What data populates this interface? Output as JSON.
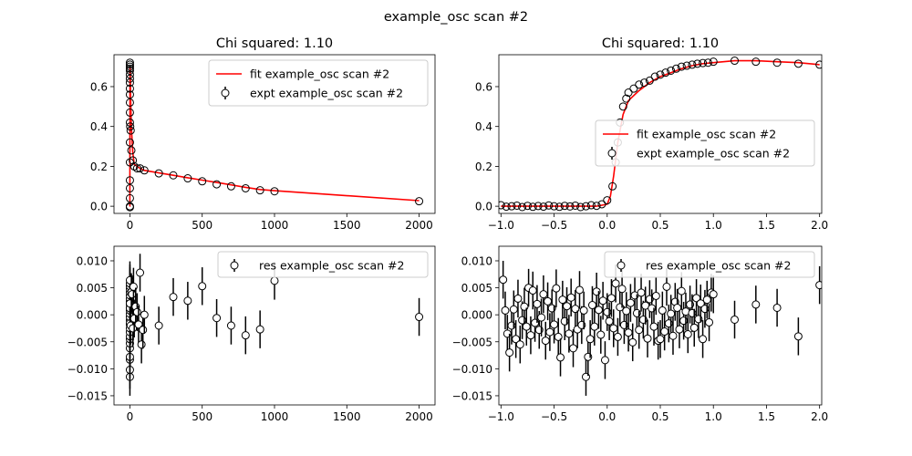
{
  "suptitle": "example_osc scan #2",
  "chart_data": [
    {
      "type": "line",
      "title": "Chi squared:  1.10",
      "xlim": [
        -110,
        2110
      ],
      "ylim": [
        -0.036,
        0.76
      ],
      "xticks": [
        0,
        500,
        1000,
        1500,
        2000
      ],
      "xtick_labels": [
        "0",
        "500",
        "1000",
        "1500",
        "2000"
      ],
      "yticks": [
        0.0,
        0.2,
        0.4,
        0.6
      ],
      "ytick_labels": [
        "0.0",
        "0.2",
        "0.4",
        "0.6"
      ],
      "legend": {
        "position": "upper right",
        "entries": [
          "fit example_osc scan #2",
          "expt example_osc scan #2"
        ]
      },
      "series": [
        {
          "name": "fit example_osc scan #2",
          "kind": "line",
          "color": "#ff0000",
          "x": [
            -1,
            0,
            0.3,
            1,
            2,
            5,
            10,
            20,
            30,
            50,
            70,
            100,
            200,
            300,
            400,
            500,
            600,
            700,
            800,
            900,
            1000,
            2000
          ],
          "y": [
            0.0,
            0.0,
            0.6,
            0.7,
            0.68,
            0.55,
            0.4,
            0.27,
            0.21,
            0.2,
            0.19,
            0.18,
            0.167,
            0.155,
            0.143,
            0.131,
            0.119,
            0.107,
            0.095,
            0.084,
            0.078,
            0.028
          ]
        },
        {
          "name": "expt example_osc scan #2",
          "kind": "scatter",
          "color": "#000000",
          "x": [
            0,
            0,
            0,
            0,
            0,
            0,
            0,
            0,
            0,
            0,
            0,
            0,
            0,
            0,
            0,
            0,
            0,
            0,
            0,
            0,
            2,
            5,
            10,
            20,
            30,
            50,
            70,
            100,
            200,
            300,
            400,
            500,
            600,
            700,
            800,
            900,
            1000,
            2000
          ],
          "y": [
            -0.005,
            0.0,
            0.04,
            0.09,
            0.13,
            0.22,
            0.32,
            0.42,
            0.47,
            0.52,
            0.56,
            0.59,
            0.62,
            0.64,
            0.66,
            0.68,
            0.69,
            0.7,
            0.71,
            0.72,
            0.4,
            0.38,
            0.28,
            0.23,
            0.2,
            0.19,
            0.19,
            0.18,
            0.165,
            0.155,
            0.14,
            0.125,
            0.11,
            0.1,
            0.09,
            0.08,
            0.075,
            0.025
          ]
        }
      ]
    },
    {
      "type": "line",
      "title": "Chi squared:  1.10",
      "xlim": [
        -1.02,
        2.02
      ],
      "ylim": [
        -0.036,
        0.76
      ],
      "xticks": [
        -1.0,
        -0.5,
        0.0,
        0.5,
        1.0,
        1.5,
        2.0
      ],
      "xtick_labels": [
        "−1.0",
        "−0.5",
        "0.0",
        "0.5",
        "1.0",
        "1.5",
        "2.0"
      ],
      "yticks": [
        0.0,
        0.2,
        0.4,
        0.6
      ],
      "ytick_labels": [
        "0.0",
        "0.2",
        "0.4",
        "0.6"
      ],
      "legend": {
        "position": "center right",
        "entries": [
          "fit example_osc scan #2",
          "expt example_osc scan #2"
        ]
      },
      "series": [
        {
          "name": "fit example_osc scan #2",
          "kind": "line",
          "color": "#ff0000",
          "x": [
            -1.0,
            -0.1,
            0.0,
            0.03,
            0.06,
            0.1,
            0.15,
            0.2,
            0.3,
            0.4,
            0.5,
            0.6,
            0.7,
            0.8,
            0.9,
            1.0,
            1.2,
            1.4,
            1.6,
            1.8,
            2.0
          ],
          "y": [
            0.0,
            0.0,
            0.01,
            0.05,
            0.15,
            0.32,
            0.46,
            0.53,
            0.58,
            0.62,
            0.65,
            0.67,
            0.69,
            0.705,
            0.715,
            0.72,
            0.73,
            0.73,
            0.725,
            0.72,
            0.71
          ]
        },
        {
          "name": "expt example_osc scan #2",
          "kind": "scatter",
          "color": "#000000",
          "x": [
            -1.0,
            -0.95,
            -0.9,
            -0.85,
            -0.8,
            -0.75,
            -0.7,
            -0.65,
            -0.6,
            -0.55,
            -0.5,
            -0.45,
            -0.4,
            -0.35,
            -0.3,
            -0.25,
            -0.2,
            -0.15,
            -0.1,
            -0.05,
            0.0,
            0.05,
            0.08,
            0.1,
            0.12,
            0.15,
            0.18,
            0.2,
            0.25,
            0.3,
            0.35,
            0.4,
            0.45,
            0.5,
            0.55,
            0.6,
            0.65,
            0.7,
            0.75,
            0.8,
            0.85,
            0.9,
            0.95,
            1.0,
            1.2,
            1.4,
            1.6,
            1.8,
            2.0
          ],
          "y": [
            0.005,
            -0.002,
            0.0,
            0.003,
            -0.004,
            0.002,
            -0.003,
            0.001,
            -0.002,
            0.004,
            0.0,
            -0.003,
            0.002,
            -0.001,
            0.003,
            -0.004,
            0.0,
            0.005,
            0.002,
            0.01,
            0.03,
            0.1,
            0.22,
            0.32,
            0.42,
            0.5,
            0.54,
            0.57,
            0.59,
            0.61,
            0.62,
            0.63,
            0.65,
            0.66,
            0.67,
            0.68,
            0.69,
            0.7,
            0.705,
            0.71,
            0.715,
            0.718,
            0.72,
            0.725,
            0.73,
            0.725,
            0.72,
            0.715,
            0.71
          ]
        }
      ]
    },
    {
      "type": "scatter",
      "title": "",
      "xlim": [
        -110,
        2110
      ],
      "ylim": [
        -0.0167,
        0.0127
      ],
      "xticks": [
        0,
        500,
        1000,
        1500,
        2000
      ],
      "xtick_labels": [
        "0",
        "500",
        "1000",
        "1500",
        "2000"
      ],
      "yticks": [
        -0.015,
        -0.01,
        -0.005,
        0.0,
        0.005,
        0.01
      ],
      "ytick_labels": [
        "−0.015",
        "−0.010",
        "−0.005",
        "0.000",
        "0.005",
        "0.010"
      ],
      "legend": {
        "position": "upper right",
        "entries": [
          "res example_osc scan #2"
        ]
      },
      "series": [
        {
          "name": "res example_osc scan #2",
          "kind": "errorbar",
          "color": "#000000",
          "yerr": 0.0035,
          "x": [
            0,
            0,
            0,
            0,
            0,
            0,
            0,
            0,
            0,
            0,
            0,
            0,
            0,
            0,
            0,
            0,
            0,
            0,
            0,
            0,
            0,
            0,
            0,
            0,
            0,
            0,
            0,
            0,
            5,
            10,
            15,
            20,
            25,
            30,
            40,
            50,
            60,
            70,
            80,
            90,
            100,
            200,
            300,
            400,
            500,
            600,
            700,
            800,
            900,
            1000,
            2000
          ],
          "y": [
            -0.0115,
            -0.0102,
            -0.0083,
            -0.0078,
            -0.0062,
            -0.0053,
            -0.0045,
            -0.004,
            -0.0032,
            -0.0025,
            -0.0018,
            -0.001,
            -0.0004,
            0.0002,
            0.0008,
            0.0013,
            0.0019,
            0.0025,
            0.003,
            0.0036,
            0.0042,
            0.0048,
            0.0053,
            0.0058,
            0.0064,
            0.0012,
            -0.0016,
            0.0021,
            -0.002,
            0.0042,
            0.0038,
            -0.0025,
            0.0052,
            -0.0007,
            0.0015,
            0.0005,
            -0.0018,
            0.0078,
            -0.0055,
            -0.0028,
            0.0,
            -0.002,
            0.0033,
            0.0026,
            0.0053,
            -0.0006,
            -0.002,
            -0.0038,
            -0.0027,
            0.0063,
            -0.0004
          ]
        }
      ]
    },
    {
      "type": "scatter",
      "title": "",
      "xlim": [
        -1.02,
        2.02
      ],
      "ylim": [
        -0.0167,
        0.0127
      ],
      "xticks": [
        -1.0,
        -0.5,
        0.0,
        0.5,
        1.0,
        1.5,
        2.0
      ],
      "xtick_labels": [
        "−1.0",
        "−0.5",
        "0.0",
        "0.5",
        "1.0",
        "1.5",
        "2.0"
      ],
      "yticks": [
        -0.015,
        -0.01,
        -0.005,
        0.0,
        0.005,
        0.01
      ],
      "ytick_labels": [
        "−0.015",
        "−0.010",
        "−0.005",
        "0.000",
        "0.005",
        "0.010"
      ],
      "legend": {
        "position": "upper right",
        "entries": [
          "res example_osc scan #2"
        ]
      },
      "series": [
        {
          "name": "res example_osc scan #2",
          "kind": "errorbar",
          "color": "#000000",
          "yerr": 0.0035,
          "x": [
            -0.98,
            -0.96,
            -0.94,
            -0.92,
            -0.9,
            -0.88,
            -0.86,
            -0.84,
            -0.82,
            -0.8,
            -0.78,
            -0.76,
            -0.74,
            -0.72,
            -0.7,
            -0.68,
            -0.66,
            -0.64,
            -0.62,
            -0.6,
            -0.58,
            -0.56,
            -0.54,
            -0.52,
            -0.5,
            -0.48,
            -0.46,
            -0.44,
            -0.42,
            -0.4,
            -0.38,
            -0.36,
            -0.34,
            -0.32,
            -0.3,
            -0.28,
            -0.26,
            -0.24,
            -0.22,
            -0.2,
            -0.18,
            -0.16,
            -0.14,
            -0.12,
            -0.1,
            -0.08,
            -0.06,
            -0.04,
            -0.02,
            0.0,
            0.02,
            0.04,
            0.06,
            0.08,
            0.1,
            0.12,
            0.14,
            0.16,
            0.18,
            0.2,
            0.22,
            0.24,
            0.26,
            0.28,
            0.3,
            0.32,
            0.34,
            0.36,
            0.38,
            0.4,
            0.42,
            0.44,
            0.46,
            0.48,
            0.5,
            0.52,
            0.54,
            0.56,
            0.58,
            0.6,
            0.62,
            0.64,
            0.66,
            0.68,
            0.7,
            0.72,
            0.74,
            0.76,
            0.78,
            0.8,
            0.82,
            0.84,
            0.86,
            0.88,
            0.9,
            0.92,
            0.94,
            0.96,
            0.98,
            1.0,
            1.2,
            1.4,
            1.6,
            1.8,
            2.0
          ],
          "y": [
            0.0065,
            0.0008,
            -0.0035,
            -0.007,
            -0.002,
            0.001,
            -0.0045,
            0.003,
            -0.0055,
            -0.001,
            0.0015,
            -0.0022,
            0.005,
            -0.0038,
            0.0045,
            -0.0015,
            0.002,
            -0.0028,
            -0.0005,
            0.0038,
            -0.0048,
            0.0025,
            -0.0032,
            0.0012,
            -0.0018,
            0.0049,
            -0.0041,
            -0.0079,
            0.0028,
            -0.0012,
            0.0016,
            -0.0035,
            0.0032,
            -0.0062,
            0.0011,
            -0.0027,
            0.0046,
            -0.0019,
            0.0008,
            -0.0115,
            -0.0078,
            -0.0045,
            0.0018,
            -0.0022,
            0.0043,
            0.0009,
            -0.0037,
            0.0026,
            -0.0084,
            0.0005,
            -0.0012,
            0.0031,
            -0.0025,
            0.0058,
            -0.0041,
            0.0014,
            0.0048,
            -0.0019,
            0.0007,
            -0.0033,
            0.0022,
            -0.0051,
            0.0036,
            0.0003,
            -0.0028,
            0.0041,
            -0.0009,
            0.0017,
            -0.0044,
            0.0029,
            0.0012,
            -0.0022,
            0.0035,
            -0.0048,
            -0.0045,
            0.0008,
            -0.0031,
            0.0052,
            -0.0016,
            0.0002,
            -0.0039,
            0.0024,
            0.0013,
            -0.0027,
            0.0044,
            -0.0011,
            0.0006,
            -0.0036,
            0.0019,
            0.0003,
            -0.0024,
            0.0031,
            -0.0008,
            0.0021,
            -0.0045,
            0.0011,
            0.0028,
            -0.0014,
            0.0041,
            0.0038,
            -0.0009,
            0.0019,
            0.0013,
            -0.004,
            0.0055
          ]
        }
      ]
    }
  ]
}
